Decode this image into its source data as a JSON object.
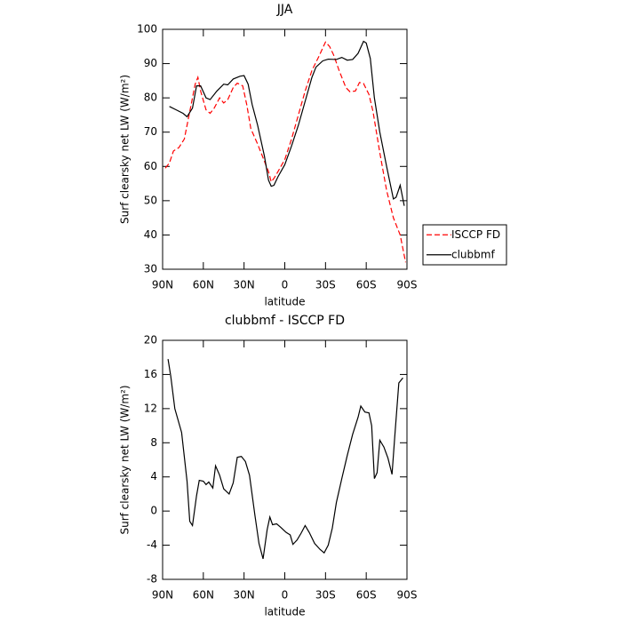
{
  "chart_data": [
    {
      "type": "line",
      "title": "JJA",
      "xlabel": "latitude",
      "ylabel": "Surf clearsky net LW (W/m²)",
      "xlim": [
        90,
        -90
      ],
      "xticks": [
        {
          "value": 90,
          "label": "90N"
        },
        {
          "value": 60,
          "label": "60N"
        },
        {
          "value": 30,
          "label": "30N"
        },
        0,
        {
          "value": -30,
          "label": "30S"
        },
        {
          "value": -60,
          "label": "60S"
        },
        {
          "value": -90,
          "label": "90S"
        }
      ],
      "ylim": [
        30,
        100
      ],
      "yticks": [
        30,
        40,
        50,
        60,
        70,
        80,
        90,
        100
      ],
      "legend": "outside-right",
      "series": [
        {
          "name": "ISCCP FD",
          "color": "#ff0000",
          "line_style": "dashed",
          "x": [
            88,
            85,
            82,
            78,
            74,
            70,
            66,
            64,
            62,
            58,
            55,
            52,
            48,
            45,
            42,
            38,
            35,
            31,
            28,
            25,
            20,
            16,
            12,
            10,
            8,
            5,
            0,
            -5,
            -10,
            -15,
            -20,
            -25,
            -30,
            -33,
            -36,
            -40,
            -45,
            -48,
            -52,
            -55,
            -58,
            -62,
            -65,
            -70,
            -75,
            -80,
            -85,
            -89
          ],
          "values": [
            59.5,
            61,
            64.5,
            65.5,
            68,
            76,
            84,
            86,
            82,
            76.5,
            75.5,
            77,
            80,
            78.5,
            79.5,
            83,
            84.3,
            83.5,
            78,
            71,
            66.5,
            62.5,
            58.5,
            55.5,
            56.5,
            58.5,
            62,
            68,
            75,
            82,
            88,
            92,
            96.3,
            95,
            92.5,
            88,
            83,
            81.8,
            82,
            84.5,
            84.2,
            81,
            76,
            64,
            53,
            45,
            40,
            32
          ]
        },
        {
          "name": "clubbmf",
          "color": "#000000",
          "line_style": "solid",
          "x": [
            85,
            80,
            75,
            72,
            68,
            65,
            62,
            58,
            55,
            50,
            45,
            42,
            38,
            33,
            30,
            27,
            24,
            20,
            15,
            12,
            10,
            8,
            5,
            0,
            -5,
            -10,
            -15,
            -20,
            -23,
            -28,
            -32,
            -38,
            -42,
            -46,
            -50,
            -54,
            -58,
            -60,
            -63,
            -66,
            -70,
            -75,
            -80,
            -82,
            -85,
            -88
          ],
          "values": [
            77.5,
            76.5,
            75.5,
            74.5,
            77,
            83.5,
            83.5,
            80,
            79.5,
            82,
            84,
            83.8,
            85.5,
            86.3,
            86.5,
            84,
            78,
            72,
            63,
            56,
            54.2,
            54.5,
            57,
            60.5,
            66,
            72,
            79,
            86,
            89,
            90.8,
            91.3,
            91.2,
            91.8,
            91,
            91.2,
            93,
            96.5,
            96,
            91.5,
            80,
            70,
            60,
            50.5,
            51,
            54.5,
            48.5
          ]
        }
      ]
    },
    {
      "type": "line",
      "title": "clubbmf - ISCCP FD",
      "xlabel": "latitude",
      "ylabel": "Surf clearsky net LW (W/m²)",
      "xlim": [
        90,
        -90
      ],
      "xticks": [
        {
          "value": 90,
          "label": "90N"
        },
        {
          "value": 60,
          "label": "60N"
        },
        {
          "value": 30,
          "label": "30N"
        },
        0,
        {
          "value": -30,
          "label": "30S"
        },
        {
          "value": -60,
          "label": "60S"
        },
        {
          "value": -90,
          "label": "90S"
        }
      ],
      "ylim": [
        -8,
        20
      ],
      "yticks": [
        -8,
        -4,
        0,
        4,
        8,
        12,
        16,
        20
      ],
      "series": [
        {
          "color": "#000000",
          "line_style": "solid",
          "x": [
            86,
            84,
            81,
            76,
            72,
            70,
            68,
            65,
            63,
            60,
            58,
            56,
            53,
            51,
            48,
            45,
            41,
            38,
            35,
            32,
            29,
            26,
            22,
            19,
            16,
            13,
            11,
            9,
            6,
            3,
            -1,
            -4,
            -6,
            -9,
            -12,
            -15,
            -18,
            -22,
            -26,
            -29,
            -32,
            -35,
            -38,
            -42,
            -46,
            -50,
            -54,
            -56,
            -59,
            -62,
            -64,
            -66,
            -68,
            -70,
            -73,
            -76,
            -79,
            -81,
            -84,
            -87
          ],
          "values": [
            17.8,
            15.8,
            12,
            9.2,
            3.5,
            -1.2,
            -1.7,
            1.8,
            3.6,
            3.5,
            3.1,
            3.4,
            2.7,
            5.3,
            4.2,
            2.6,
            2,
            3.3,
            6.3,
            6.4,
            5.8,
            4.2,
            -0.5,
            -3.8,
            -5.6,
            -2.2,
            -0.7,
            -1.6,
            -1.5,
            -1.9,
            -2.5,
            -2.8,
            -3.9,
            -3.4,
            -2.6,
            -1.7,
            -2.5,
            -3.8,
            -4.5,
            -4.9,
            -4,
            -2,
            1,
            3.8,
            6.5,
            9,
            11,
            12.3,
            11.6,
            11.5,
            10,
            3.8,
            4.5,
            8.3,
            7.5,
            6.2,
            4.3,
            8.7,
            15,
            15.6
          ]
        }
      ]
    }
  ]
}
